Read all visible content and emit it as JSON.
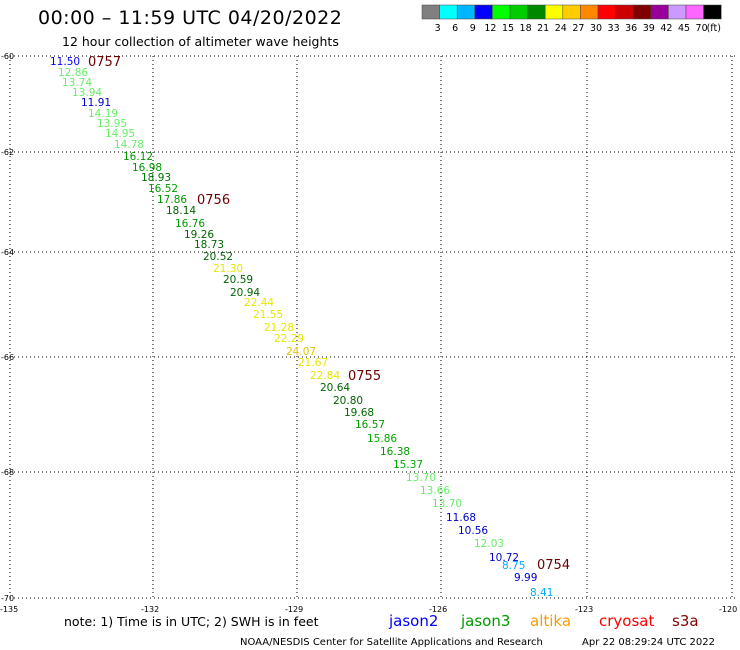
{
  "title": "00:00 – 11:59 UTC 04/20/2022",
  "subtitle": "12 hour collection of altimeter wave heights",
  "legend": {
    "colors": [
      "#808080",
      "#00ffff",
      "#00b7ff",
      "#0000ff",
      "#00ff00",
      "#00cc00",
      "#008800",
      "#ffff00",
      "#ffcc00",
      "#ff8800",
      "#ff0000",
      "#cc0000",
      "#800000",
      "#990099",
      "#cc99ff",
      "#ff66ff",
      "#000000"
    ],
    "labels": [
      "3",
      "6",
      "9",
      "12",
      "15",
      "18",
      "21",
      "24",
      "27",
      "30",
      "33",
      "36",
      "39",
      "42",
      "45",
      "70",
      "(ft)"
    ]
  },
  "axes": {
    "lat_labels": [
      "-60",
      "-62",
      "-64",
      "-66",
      "-68",
      "-70"
    ],
    "lon_labels": [
      "-135",
      "-132",
      "-129",
      "-126",
      "-123",
      "-120"
    ]
  },
  "passes": [
    "0757",
    "0756",
    "0755",
    "0754"
  ],
  "observations": [
    {
      "v": "11.50",
      "c": "#0000ff"
    },
    {
      "v": "12.86",
      "c": "#66ee66"
    },
    {
      "v": "13.74",
      "c": "#66ee66"
    },
    {
      "v": "13.94",
      "c": "#66ee66"
    },
    {
      "v": "11.91",
      "c": "#0000cc"
    },
    {
      "v": "14.19",
      "c": "#66ee66"
    },
    {
      "v": "13.95",
      "c": "#66ee66"
    },
    {
      "v": "14.95",
      "c": "#66ee66"
    },
    {
      "v": "14.78",
      "c": "#66ee66"
    },
    {
      "v": "16.12",
      "c": "#009900"
    },
    {
      "v": "16.98",
      "c": "#009900"
    },
    {
      "v": "18.93",
      "c": "#007700"
    },
    {
      "v": "16.52",
      "c": "#009900"
    },
    {
      "v": "17.86",
      "c": "#009900"
    },
    {
      "v": "18.14",
      "c": "#006600"
    },
    {
      "v": "16.76",
      "c": "#009900"
    },
    {
      "v": "19.26",
      "c": "#006600"
    },
    {
      "v": "18.73",
      "c": "#006600"
    },
    {
      "v": "20.52",
      "c": "#006600"
    },
    {
      "v": "21.30",
      "c": "#e6e600"
    },
    {
      "v": "20.59",
      "c": "#006600"
    },
    {
      "v": "20.94",
      "c": "#006600"
    },
    {
      "v": "22.44",
      "c": "#e6e600"
    },
    {
      "v": "21.55",
      "c": "#e6e600"
    },
    {
      "v": "21.28",
      "c": "#e6e600"
    },
    {
      "v": "22.29",
      "c": "#e6e600"
    },
    {
      "v": "24.07",
      "c": "#e6c200"
    },
    {
      "v": "21.67",
      "c": "#e6e600"
    },
    {
      "v": "22.84",
      "c": "#e6e600"
    },
    {
      "v": "20.64",
      "c": "#006600"
    },
    {
      "v": "20.80",
      "c": "#006600"
    },
    {
      "v": "19.68",
      "c": "#006600"
    },
    {
      "v": "16.57",
      "c": "#009900"
    },
    {
      "v": "15.86",
      "c": "#00aa00"
    },
    {
      "v": "16.38",
      "c": "#009900"
    },
    {
      "v": "15.37",
      "c": "#00aa00"
    },
    {
      "v": "13.70",
      "c": "#66ee66"
    },
    {
      "v": "13.66",
      "c": "#66ee66"
    },
    {
      "v": "13.70",
      "c": "#66ee66"
    },
    {
      "v": "11.68",
      "c": "#0000cc"
    },
    {
      "v": "10.56",
      "c": "#0000cc"
    },
    {
      "v": "12.03",
      "c": "#66ee66"
    },
    {
      "v": "10.72",
      "c": "#0000cc"
    },
    {
      "v": "8.75",
      "c": "#00aaff"
    },
    {
      "v": "9.99",
      "c": "#0000cc"
    },
    {
      "v": "8.41",
      "c": "#00aaff"
    }
  ],
  "note": "note: 1) Time is in UTC; 2) SWH is in feet",
  "satellites": [
    {
      "name": "jason2",
      "color": "#0000ff"
    },
    {
      "name": "jason3",
      "color": "#009900"
    },
    {
      "name": "altika",
      "color": "#ff9900"
    },
    {
      "name": "cryosat",
      "color": "#ff0000"
    },
    {
      "name": "s3a",
      "color": "#880000"
    }
  ],
  "footer_left": "NOAA/NESDIS Center for Satellite Applications and Research",
  "footer_right": "Apr 22 08:29:24 UTC 2022"
}
